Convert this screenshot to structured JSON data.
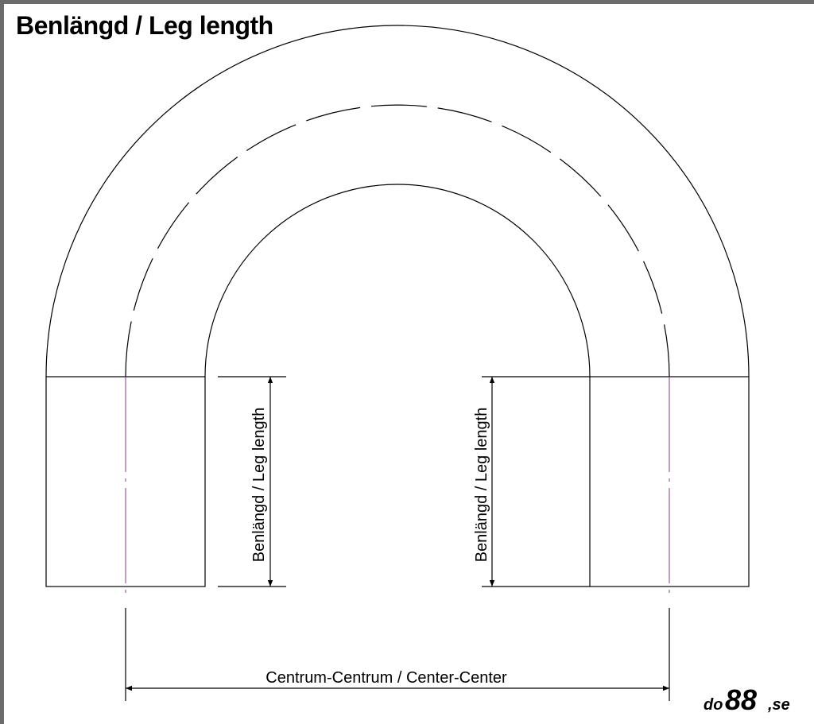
{
  "title": "Benlängd / Leg length",
  "leg_label": "Benlängd / Leg length",
  "center_label": "Centrum-Centrum / Center-Center",
  "logo": "do88.se",
  "colors": {
    "line": "#000000",
    "centerline": "#8a3a8a",
    "border": "#6b6b6b"
  }
}
